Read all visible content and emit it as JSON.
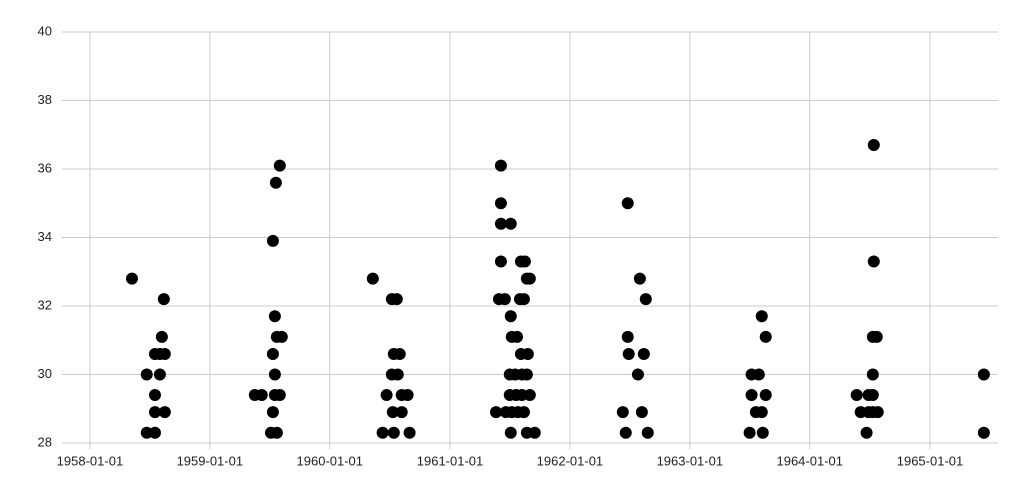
{
  "chart_data": {
    "type": "scatter",
    "color": "#000000",
    "grid": true,
    "xlim": [
      "1957-10-08",
      "1965-07-27"
    ],
    "xticks": [
      "1958-01-01",
      "1959-01-01",
      "1960-01-01",
      "1961-01-01",
      "1962-01-01",
      "1963-01-01",
      "1964-01-01",
      "1965-01-01"
    ],
    "ylim": [
      28,
      40
    ],
    "yticks": [
      28,
      30,
      32,
      34,
      36,
      38,
      40
    ],
    "x": [
      "1958-05-09",
      "1958-06-23",
      "1958-06-23",
      "1958-07-18",
      "1958-07-18",
      "1958-07-18",
      "1958-07-18",
      "1958-08-02",
      "1958-08-02",
      "1958-08-08",
      "1958-08-17",
      "1958-08-17",
      "1958-08-14",
      "1959-05-18",
      "1959-06-08",
      "1959-08-02",
      "1959-07-21",
      "1959-07-12",
      "1959-07-18",
      "1959-07-24",
      "1959-08-08",
      "1959-07-12",
      "1959-07-18",
      "1959-07-18",
      "1959-08-02",
      "1959-07-12",
      "1959-07-06",
      "1959-07-24",
      "1960-07-08",
      "1960-07-23",
      "1960-07-14",
      "1960-08-01",
      "1960-07-08",
      "1960-07-26",
      "1960-06-22",
      "1960-08-07",
      "1960-08-25",
      "1960-07-11",
      "1960-08-07",
      "1960-06-10",
      "1960-07-14",
      "1960-08-31",
      "1960-05-11",
      "1961-06-05",
      "1961-06-05",
      "1961-06-05",
      "1961-07-05",
      "1961-06-05",
      "1961-08-05",
      "1961-08-17",
      "1961-08-23",
      "1961-09-01",
      "1961-05-30",
      "1961-06-17",
      "1961-08-02",
      "1961-08-14",
      "1961-07-05",
      "1961-07-08",
      "1961-07-24",
      "1961-08-05",
      "1961-08-26",
      "1961-07-02",
      "1961-07-18",
      "1961-08-08",
      "1961-08-23",
      "1961-07-02",
      "1961-07-21",
      "1961-08-08",
      "1961-09-01",
      "1961-05-21",
      "1961-06-20",
      "1961-07-08",
      "1961-07-27",
      "1961-08-14",
      "1961-07-05",
      "1961-08-23",
      "1961-09-16",
      "1962-06-26",
      "1962-08-02",
      "1962-08-20",
      "1962-06-26",
      "1962-06-29",
      "1962-08-14",
      "1962-07-27",
      "1962-06-11",
      "1962-08-08",
      "1962-06-20",
      "1962-08-26",
      "1963-08-08",
      "1963-08-20",
      "1963-07-08",
      "1963-07-30",
      "1963-07-08",
      "1963-08-20",
      "1963-07-21",
      "1963-08-08",
      "1963-07-02",
      "1963-08-11",
      "1964-07-14",
      "1964-07-14",
      "1964-07-11",
      "1964-07-23",
      "1964-07-11",
      "1964-05-23",
      "1964-06-28",
      "1964-07-11",
      "1964-06-04",
      "1964-06-28",
      "1964-07-11",
      "1964-07-26",
      "1964-06-22",
      "1965-06-14",
      "1965-06-14"
    ],
    "values": [
      32.8,
      30.0,
      28.3,
      30.6,
      29.4,
      28.9,
      28.3,
      30.6,
      30.0,
      31.1,
      30.6,
      28.9,
      32.2,
      29.4,
      29.4,
      36.1,
      35.6,
      33.9,
      31.7,
      31.1,
      31.1,
      30.6,
      30.0,
      29.4,
      29.4,
      28.9,
      28.3,
      28.3,
      32.2,
      32.2,
      30.6,
      30.6,
      30.0,
      30.0,
      29.4,
      29.4,
      29.4,
      28.9,
      28.9,
      28.3,
      28.3,
      28.3,
      32.8,
      36.1,
      35.0,
      34.4,
      34.4,
      33.3,
      33.3,
      33.3,
      32.8,
      32.8,
      32.2,
      32.2,
      32.2,
      32.2,
      31.7,
      31.1,
      31.1,
      30.6,
      30.6,
      30.0,
      30.0,
      30.0,
      30.0,
      29.4,
      29.4,
      29.4,
      29.4,
      28.9,
      28.9,
      28.9,
      28.9,
      28.9,
      28.3,
      28.3,
      28.3,
      35.0,
      32.8,
      32.2,
      31.1,
      30.6,
      30.6,
      30.0,
      28.9,
      28.9,
      28.3,
      28.3,
      31.7,
      31.1,
      30.0,
      30.0,
      29.4,
      29.4,
      28.9,
      28.9,
      28.3,
      28.3,
      36.7,
      33.3,
      31.1,
      31.1,
      30.0,
      29.4,
      29.4,
      29.4,
      28.9,
      28.9,
      28.9,
      28.9,
      28.3,
      30.0,
      28.3
    ]
  }
}
